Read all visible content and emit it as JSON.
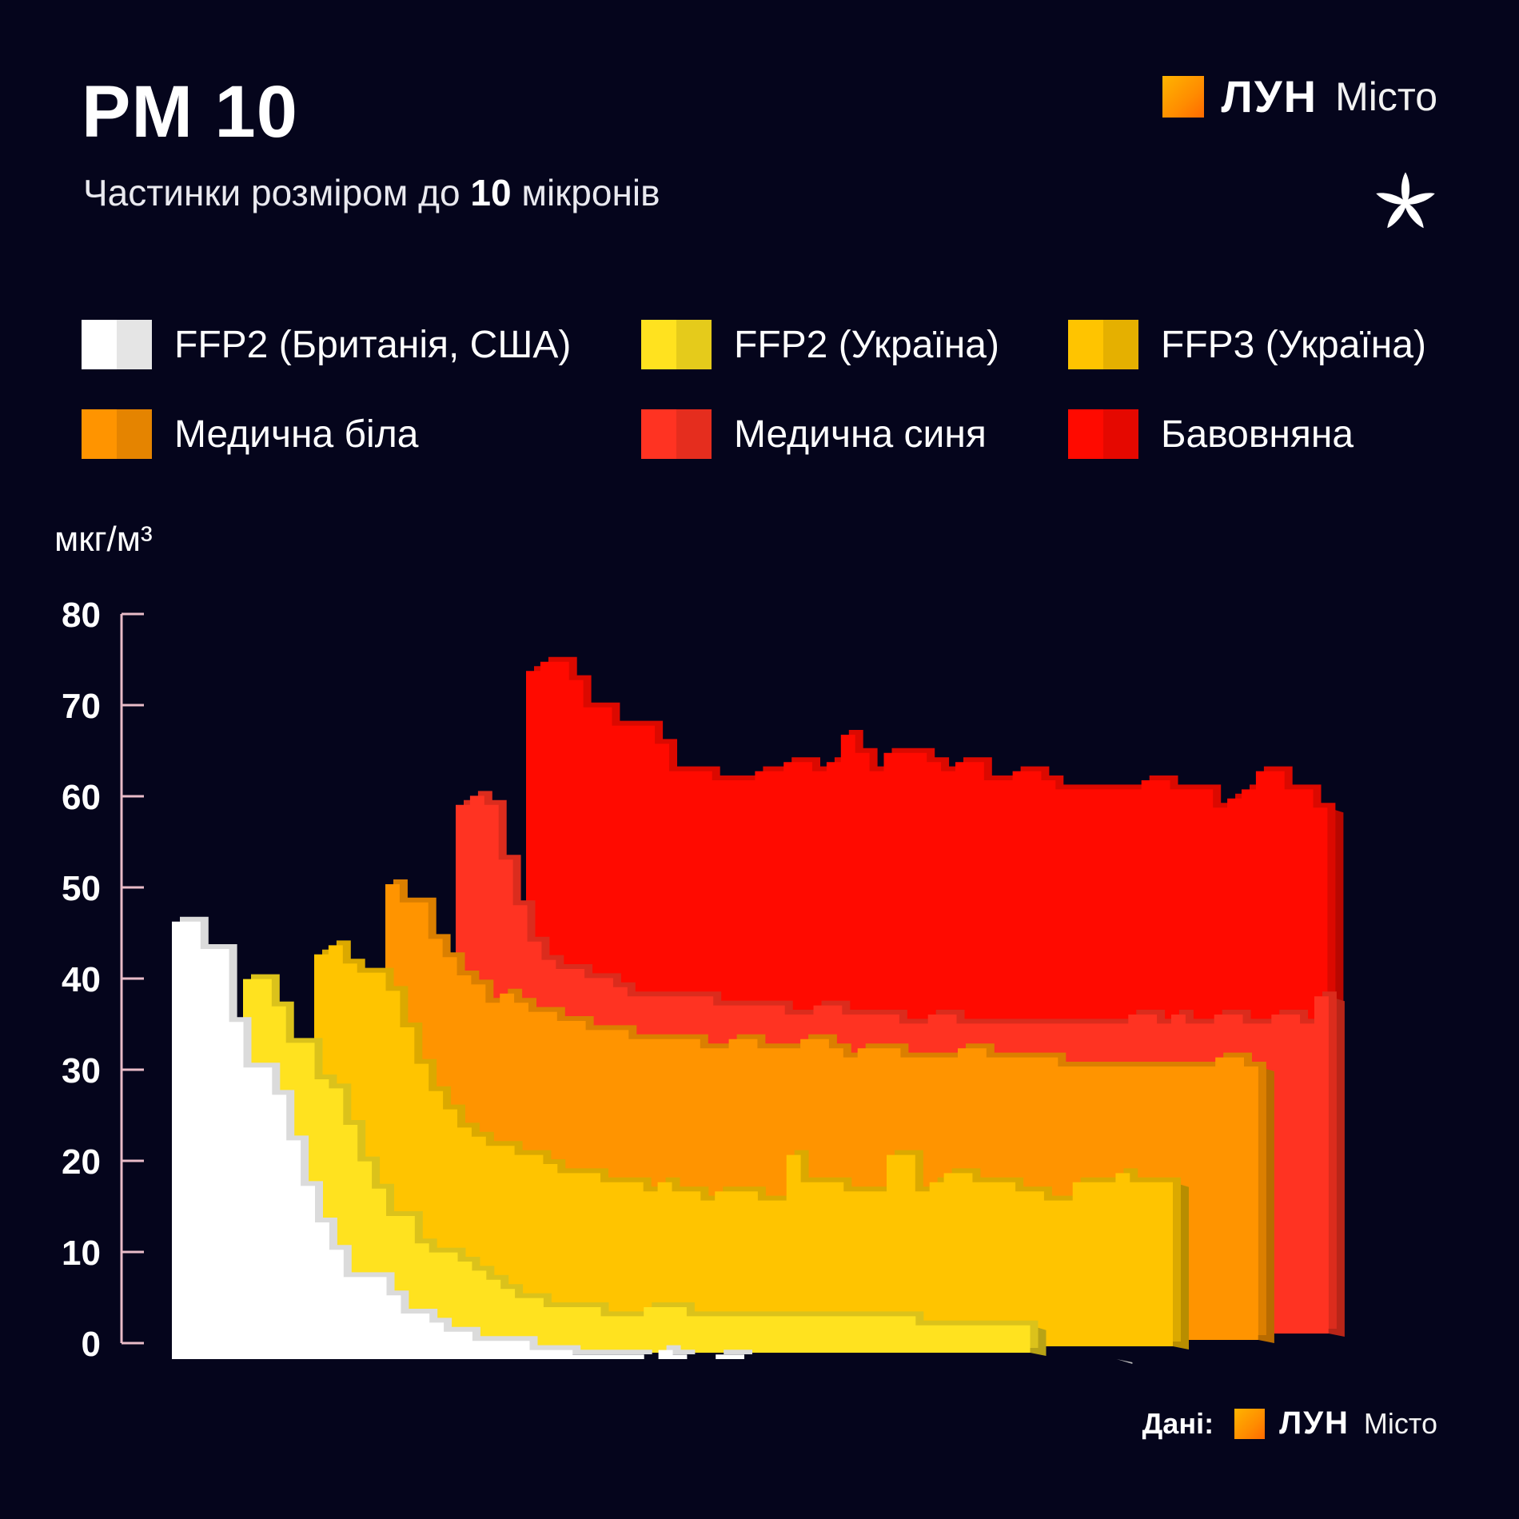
{
  "header": {
    "title": "PM 10",
    "subtitle_pre": "Частинки розміром до ",
    "subtitle_bold": "10",
    "subtitle_post": " мікронів"
  },
  "brand": {
    "name": "ЛУН",
    "city": "Місто",
    "icon": "chestnut-leaf-icon"
  },
  "source": {
    "label": "Дані:",
    "name": "ЛУН",
    "city": "Місто"
  },
  "colors": {
    "background": "#05051c",
    "ffp2_uk_usa": "#ffffff",
    "ffp2_ua": "#ffe21f",
    "ffp3_ua": "#ffc400",
    "medical_white": "#ff9400",
    "medical_blue": "#ff3322",
    "cotton": "#ff0a00"
  },
  "chart_data": {
    "type": "area",
    "ylabel": "мкг/м³",
    "ylim": [
      0,
      80
    ],
    "yticks": [
      "0",
      "10",
      "20",
      "30",
      "40",
      "50",
      "60",
      "70",
      "80"
    ],
    "series": [
      {
        "name": "FFP2 (Британія, США)",
        "color": "#ffffff",
        "values": [
          48,
          48,
          45,
          45,
          37,
          32,
          32,
          29,
          24,
          19,
          15,
          12,
          9,
          9,
          9,
          7,
          5,
          5,
          4,
          3,
          3,
          2,
          2,
          2,
          2,
          1,
          1,
          1,
          0.5,
          0.5,
          0.5,
          0.5,
          0.5,
          0,
          1,
          0.5,
          0,
          0,
          0.5,
          0.5,
          0,
          0,
          0,
          0,
          0,
          0,
          0,
          0,
          0,
          0,
          0,
          0,
          0,
          0,
          0,
          0,
          0,
          0,
          0,
          0,
          0,
          0,
          0,
          0,
          0,
          0
        ]
      },
      {
        "name": "FFP2 (Україна)",
        "color": "#ffe21f",
        "values": [
          41,
          41,
          38,
          34,
          34,
          30,
          29,
          25,
          21,
          18,
          15,
          15,
          12,
          11,
          11,
          10,
          9,
          8,
          7,
          6,
          6,
          5,
          5,
          5,
          5,
          4,
          4,
          4,
          5,
          5,
          5,
          4,
          4,
          4,
          4,
          4,
          4,
          4,
          4,
          4,
          4,
          4,
          4,
          4,
          4,
          4,
          4,
          3,
          3,
          3,
          3,
          3,
          3,
          3,
          3
        ]
      },
      {
        "name": "FFP3 (Україна)",
        "color": "#ffc400",
        "values": [
          43,
          44,
          42,
          41,
          41,
          39,
          35,
          31,
          28,
          26,
          24,
          23,
          22,
          22,
          21,
          21,
          20,
          19,
          19,
          19,
          18,
          18,
          18,
          17,
          18,
          17,
          17,
          16,
          17,
          17,
          17,
          16,
          16,
          21,
          18,
          18,
          18,
          17,
          17,
          17,
          21,
          21,
          17,
          18,
          19,
          19,
          18,
          18,
          18,
          17,
          17,
          16,
          16,
          18,
          18,
          18,
          19,
          18,
          18,
          18
        ]
      },
      {
        "name": "Медична біла",
        "color": "#ff9400",
        "values": [
          50,
          48,
          48,
          44,
          42,
          40,
          39,
          37,
          38,
          37,
          36,
          36,
          35,
          35,
          34,
          34,
          34,
          33,
          33,
          33,
          33,
          33,
          32,
          32,
          33,
          33,
          32,
          32,
          32,
          33,
          33,
          32,
          31,
          32,
          32,
          32,
          31,
          31,
          31,
          31,
          32,
          32,
          31,
          31,
          31,
          31,
          31,
          30,
          30,
          30,
          30,
          30,
          30,
          30,
          30,
          30,
          30,
          30,
          31,
          31,
          30
        ]
      },
      {
        "name": "Медична синя",
        "color": "#ff3322",
        "values": [
          58,
          59,
          58,
          52,
          47,
          43,
          41,
          40,
          40,
          39,
          39,
          38,
          37,
          37,
          37,
          37,
          37,
          37,
          36,
          36,
          36,
          36,
          36,
          35,
          35,
          36,
          36,
          35,
          35,
          35,
          35,
          34,
          34,
          35,
          35,
          34,
          34,
          34,
          34,
          34,
          34,
          34,
          34,
          34,
          34,
          34,
          34,
          35,
          35,
          34,
          35,
          34,
          34,
          35,
          35,
          34,
          34,
          35,
          35,
          34,
          37
        ]
      },
      {
        "name": "Бавовняна",
        "color": "#ff0a00",
        "values": [
          72,
          73,
          73,
          71,
          68,
          68,
          66,
          66,
          66,
          64,
          61,
          61,
          61,
          60,
          60,
          60,
          61,
          61,
          62,
          62,
          61,
          62,
          65,
          63,
          61,
          63,
          63,
          63,
          62,
          61,
          62,
          62,
          60,
          60,
          61,
          61,
          60,
          59,
          59,
          59,
          59,
          59,
          59,
          60,
          60,
          59,
          59,
          59,
          57,
          58,
          59,
          61,
          61,
          59,
          59,
          57
        ]
      }
    ]
  }
}
